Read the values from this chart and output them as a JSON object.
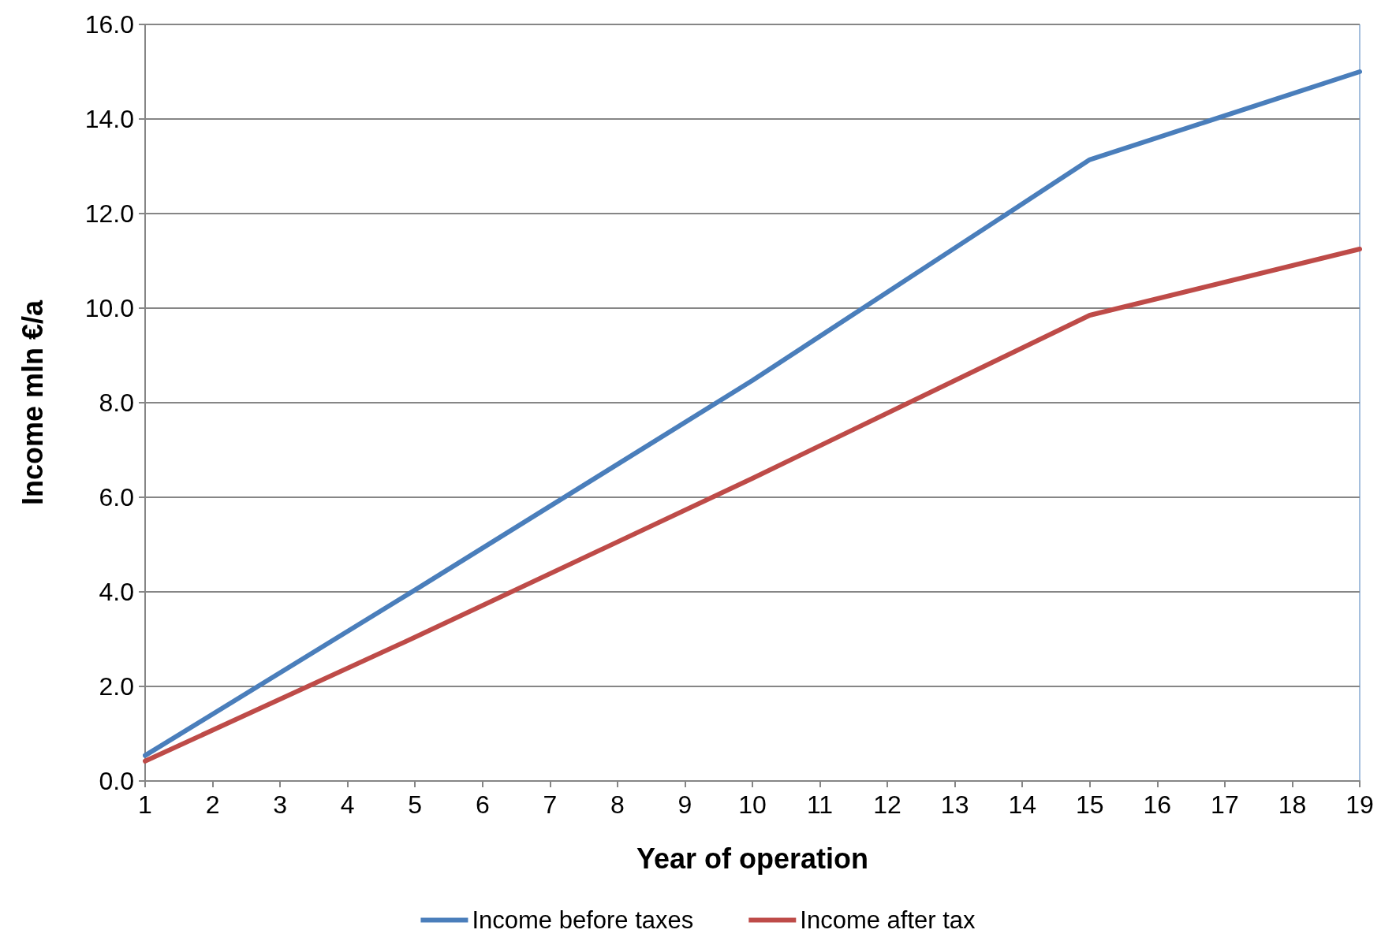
{
  "chart_data": {
    "type": "line",
    "xlabel": "Year of operation",
    "ylabel": "Income mln €/a",
    "series": [
      {
        "name": "Income before taxes",
        "color": "#4a7ebb",
        "x": [
          1,
          5,
          10,
          15,
          19
        ],
        "values": [
          0.54,
          4.04,
          8.47,
          13.14,
          15.0
        ]
      },
      {
        "name": "Income after tax",
        "color": "#be4b48",
        "x": [
          1,
          5,
          10,
          15,
          19
        ],
        "values": [
          0.42,
          3.04,
          6.4,
          9.85,
          11.25
        ]
      }
    ],
    "xlim": [
      1,
      19
    ],
    "xticks": [
      1,
      2,
      3,
      4,
      5,
      6,
      7,
      8,
      9,
      10,
      11,
      12,
      13,
      14,
      15,
      16,
      17,
      18,
      19
    ],
    "ylim": [
      0,
      16
    ],
    "yticks": [
      {
        "value": 0,
        "label": "0.0"
      },
      {
        "value": 2,
        "label": "2.0"
      },
      {
        "value": 4,
        "label": "4.0"
      },
      {
        "value": 6,
        "label": "6.0"
      },
      {
        "value": 8,
        "label": "8.0"
      },
      {
        "value": 10,
        "label": "10.0"
      },
      {
        "value": 12,
        "label": "12.0"
      },
      {
        "value": 14,
        "label": "14.0"
      },
      {
        "value": 16,
        "label": "16.0"
      }
    ],
    "grid": "y",
    "legend": "bottom",
    "marker": "none",
    "line_style": "solid"
  }
}
